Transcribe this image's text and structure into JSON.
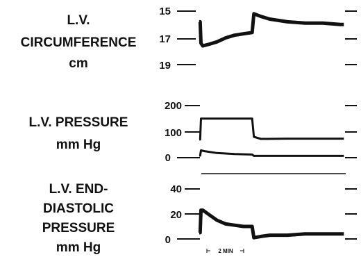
{
  "chart_data": [
    {
      "type": "line",
      "title": "",
      "ylabel": [
        "L.V.",
        "CIRCUMFERENCE",
        "cm"
      ],
      "yticks": [
        "15",
        "17",
        "19"
      ],
      "ylim": [
        15,
        19
      ],
      "inverted_axis": true,
      "series": [
        {
          "x": [
            0,
            0.05,
            0.1,
            0.2,
            0.5,
            1.0,
            1.5,
            2.0,
            2.5,
            3.0,
            3.1,
            3.5,
            4.0,
            5.0,
            6.0,
            7.0,
            8.0,
            8.2
          ],
          "y": [
            15.8,
            15.8,
            17.4,
            17.6,
            17.5,
            17.3,
            17.0,
            16.8,
            16.7,
            16.6,
            15.2,
            15.4,
            15.6,
            15.8,
            15.9,
            15.9,
            16.0,
            16.0
          ]
        }
      ]
    },
    {
      "type": "line",
      "title": "",
      "ylabel": [
        "L.V. PRESSURE",
        "mm Hg"
      ],
      "yticks": [
        "200",
        "100",
        "0"
      ],
      "ylim": [
        0,
        200
      ],
      "series": [
        {
          "x": [
            0,
            0.05,
            0.1,
            3.0,
            3.1,
            3.5,
            5.0,
            8.2
          ],
          "y": [
            70,
            70,
            150,
            150,
            80,
            72,
            73,
            73
          ]
        },
        {
          "x": [
            0,
            0.05,
            0.1,
            0.3,
            1.0,
            2.0,
            3.0,
            3.1,
            5.0,
            8.2
          ],
          "y": [
            8,
            8,
            28,
            25,
            18,
            14,
            12,
            7,
            7,
            7
          ]
        }
      ]
    },
    {
      "type": "line",
      "title": "",
      "ylabel": [
        "L.V. END-",
        "DIASTOLIC",
        "PRESSURE",
        "mm Hg"
      ],
      "yticks": [
        "40",
        "20",
        "0"
      ],
      "ylim": [
        0,
        40
      ],
      "xlabel": "2 MIN",
      "series": [
        {
          "x": [
            0,
            0.05,
            0.1,
            0.2,
            0.5,
            1.0,
            1.5,
            2.0,
            2.5,
            3.0,
            3.1,
            3.5,
            4.0,
            5.0,
            6.0,
            7.0,
            8.2
          ],
          "y": [
            5,
            5,
            23,
            23,
            20,
            15,
            12,
            11,
            10,
            10,
            1,
            2,
            3,
            3,
            4,
            4,
            4
          ]
        }
      ]
    }
  ]
}
